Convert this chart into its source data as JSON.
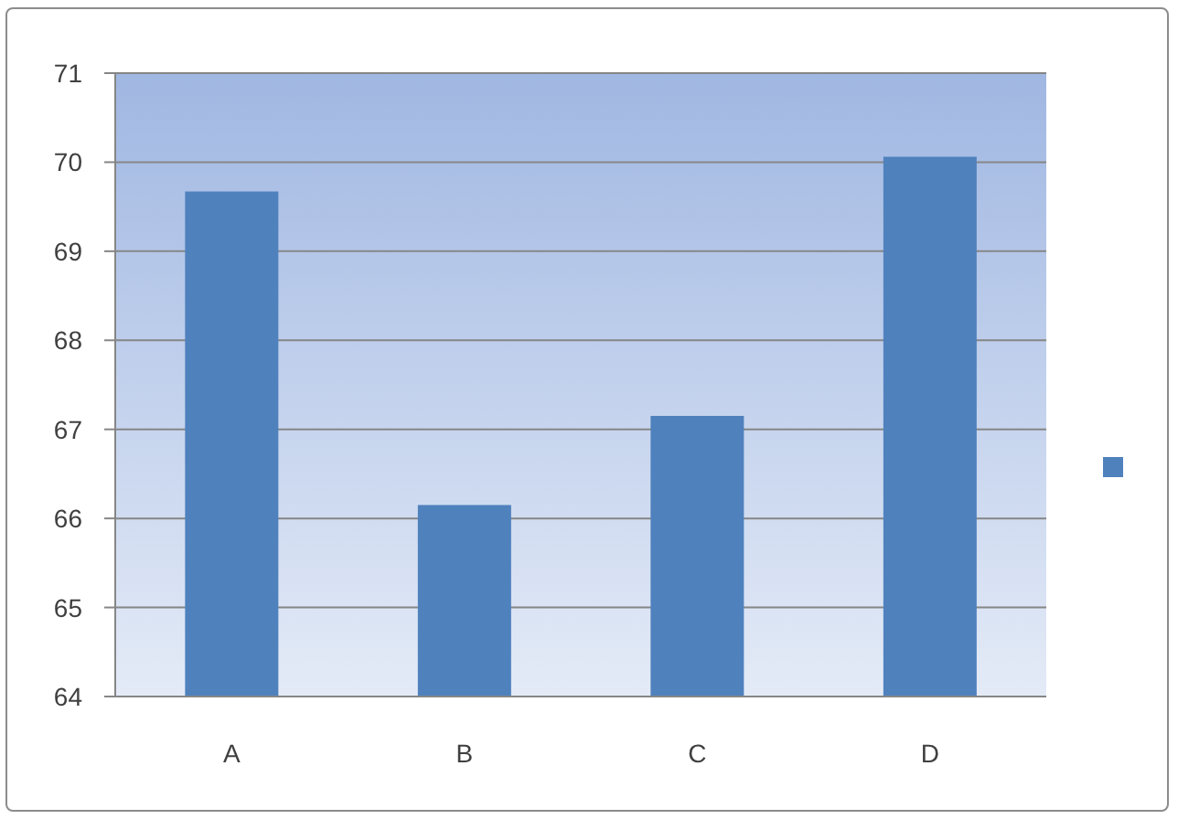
{
  "chart_data": {
    "type": "bar",
    "categories": [
      "A",
      "B",
      "C",
      "D"
    ],
    "series": [
      {
        "color": "#4f81bd",
        "values": [
          69.67,
          66.15,
          67.15,
          70.06
        ]
      }
    ],
    "ylim": [
      64,
      71
    ],
    "yticks": [
      64,
      65,
      66,
      67,
      68,
      69,
      70,
      71
    ],
    "grid": "y"
  }
}
